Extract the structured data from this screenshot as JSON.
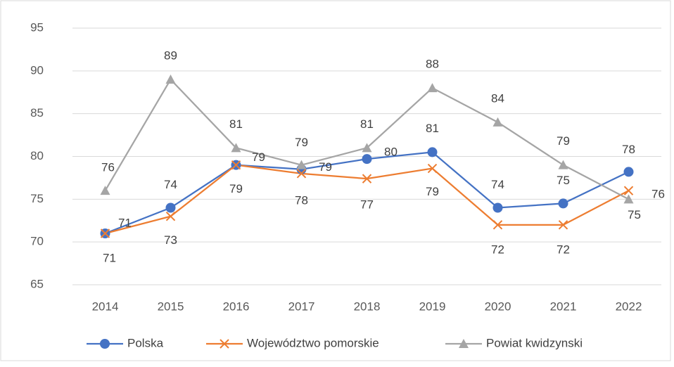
{
  "chart_data": {
    "type": "line",
    "categories": [
      "2014",
      "2015",
      "2016",
      "2017",
      "2018",
      "2019",
      "2020",
      "2021",
      "2022"
    ],
    "ylim": [
      65,
      95
    ],
    "yticks": [
      65,
      70,
      75,
      80,
      85,
      90,
      95
    ],
    "grid": true,
    "legend": "bottom",
    "series": [
      {
        "name": "Polska",
        "color": "#4472c4",
        "marker": "circle",
        "values": [
          71,
          74,
          79,
          78.5,
          79.7,
          80.5,
          74,
          74.5,
          78.2
        ],
        "value_labels": [
          "71",
          "74",
          "79",
          "79",
          "80",
          "81",
          "74",
          "75",
          "78"
        ]
      },
      {
        "name": "Województwo pomorskie",
        "color": "#ed7d31",
        "marker": "x",
        "values": [
          71,
          73,
          79,
          78,
          77.4,
          78.6,
          72,
          72,
          76
        ],
        "value_labels": [
          "71",
          "73",
          "79",
          "78",
          "77",
          "79",
          "72",
          "72",
          "76"
        ]
      },
      {
        "name": "Powiat kwidzynski",
        "color": "#a5a5a5",
        "marker": "triangle",
        "values": [
          76,
          89,
          81,
          79,
          81,
          88,
          84,
          79,
          75
        ]
      }
    ]
  }
}
